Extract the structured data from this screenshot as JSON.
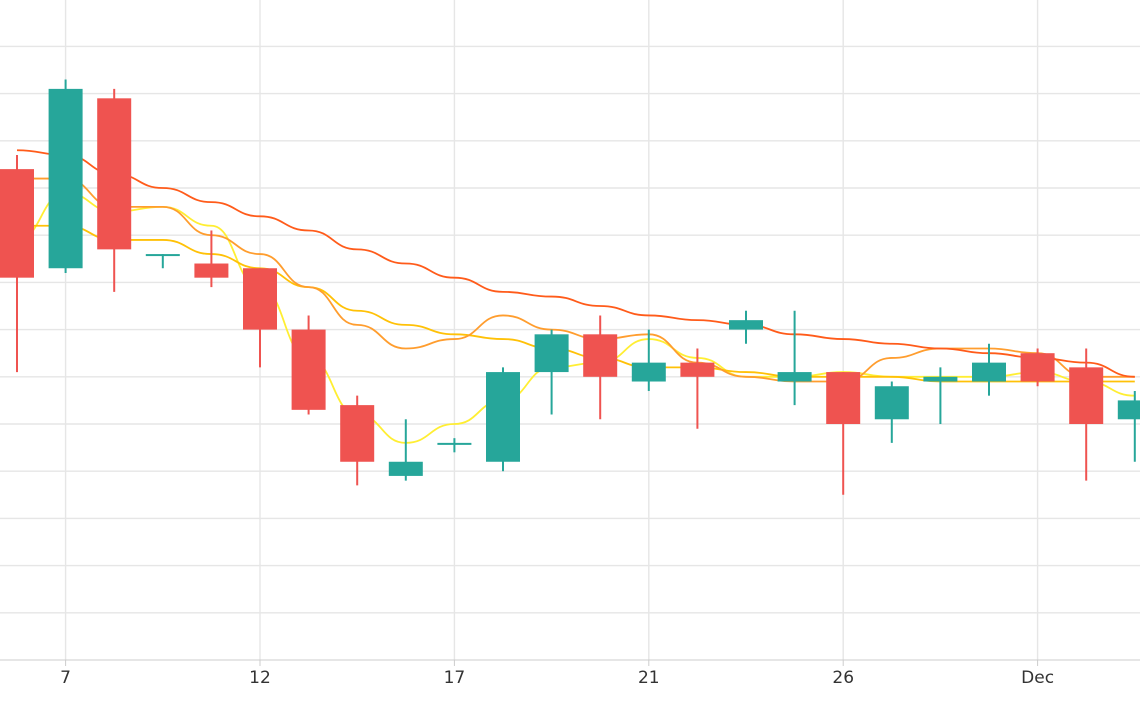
{
  "chart_data": {
    "type": "candlestick",
    "x_tick_labels": [
      "7",
      "12",
      "17",
      "21",
      "26",
      "Dec"
    ],
    "y_range": [
      0,
      14
    ],
    "grid": true,
    "colors": {
      "up": "#26a69a",
      "down": "#ef5350",
      "grid": "#e6e6e6",
      "axis": "#cccccc",
      "ma_lines": [
        "#ffee33",
        "#ffc107",
        "#ff9d2e",
        "#ff5b1a"
      ]
    },
    "candles": [
      {
        "open": 10.4,
        "high": 10.7,
        "low": 6.1,
        "close": 8.1
      },
      {
        "open": 8.3,
        "high": 12.3,
        "low": 8.2,
        "close": 12.1
      },
      {
        "open": 11.9,
        "high": 12.1,
        "low": 7.8,
        "close": 8.7
      },
      {
        "open": 8.6,
        "high": 8.6,
        "low": 8.3,
        "close": 8.6
      },
      {
        "open": 8.4,
        "high": 9.1,
        "low": 7.9,
        "close": 8.1
      },
      {
        "open": 8.3,
        "high": 8.3,
        "low": 6.2,
        "close": 7.0
      },
      {
        "open": 7.0,
        "high": 7.3,
        "low": 5.2,
        "close": 5.3
      },
      {
        "open": 5.4,
        "high": 5.6,
        "low": 3.7,
        "close": 4.2
      },
      {
        "open": 3.9,
        "high": 5.1,
        "low": 3.8,
        "close": 4.2
      },
      {
        "open": 4.6,
        "high": 4.7,
        "low": 4.4,
        "close": 4.6
      },
      {
        "open": 4.2,
        "high": 6.2,
        "low": 4.0,
        "close": 6.1
      },
      {
        "open": 6.1,
        "high": 7.0,
        "low": 5.2,
        "close": 6.9
      },
      {
        "open": 6.9,
        "high": 7.3,
        "low": 5.1,
        "close": 6.0
      },
      {
        "open": 5.9,
        "high": 7.0,
        "low": 5.7,
        "close": 6.3
      },
      {
        "open": 6.3,
        "high": 6.6,
        "low": 4.9,
        "close": 6.0
      },
      {
        "open": 7.0,
        "high": 7.4,
        "low": 6.7,
        "close": 7.2
      },
      {
        "open": 5.9,
        "high": 7.4,
        "low": 5.4,
        "close": 6.1
      },
      {
        "open": 6.1,
        "high": 6.1,
        "low": 3.5,
        "close": 5.0
      },
      {
        "open": 5.1,
        "high": 5.9,
        "low": 4.6,
        "close": 5.8
      },
      {
        "open": 5.9,
        "high": 6.2,
        "low": 5.0,
        "close": 6.0
      },
      {
        "open": 5.9,
        "high": 6.7,
        "low": 5.6,
        "close": 6.3
      },
      {
        "open": 6.5,
        "high": 6.6,
        "low": 5.8,
        "close": 5.9
      },
      {
        "open": 6.2,
        "high": 6.6,
        "low": 3.8,
        "close": 5.0
      },
      {
        "open": 5.1,
        "high": 5.7,
        "low": 4.2,
        "close": 5.5
      }
    ],
    "moving_averages": [
      {
        "values": [
          8.9,
          9.9,
          9.5,
          9.6,
          9.2,
          7.9,
          6.4,
          5.2,
          4.6,
          5.0,
          5.5,
          6.2,
          6.3,
          6.8,
          6.4,
          6.0,
          6.0,
          6.1,
          6.0,
          6.0,
          6.0,
          6.1,
          5.9,
          5.6
        ]
      },
      {
        "values": [
          9.2,
          9.2,
          8.9,
          8.9,
          8.6,
          8.3,
          7.9,
          7.4,
          7.1,
          6.9,
          6.8,
          6.6,
          6.4,
          6.2,
          6.2,
          6.1,
          6.0,
          6.0,
          6.0,
          5.9,
          5.9,
          5.9,
          5.9,
          5.9
        ]
      },
      {
        "values": [
          10.2,
          10.2,
          9.6,
          9.6,
          9.0,
          8.6,
          7.9,
          7.1,
          6.6,
          6.8,
          7.3,
          7.0,
          6.8,
          6.9,
          6.3,
          6.0,
          5.9,
          5.9,
          6.4,
          6.6,
          6.6,
          6.5,
          6.0,
          6.0
        ]
      },
      {
        "values": [
          10.8,
          10.7,
          10.3,
          10.0,
          9.7,
          9.4,
          9.1,
          8.7,
          8.4,
          8.1,
          7.8,
          7.7,
          7.5,
          7.3,
          7.2,
          7.1,
          6.9,
          6.8,
          6.7,
          6.6,
          6.5,
          6.4,
          6.3,
          6.0
        ]
      }
    ]
  }
}
